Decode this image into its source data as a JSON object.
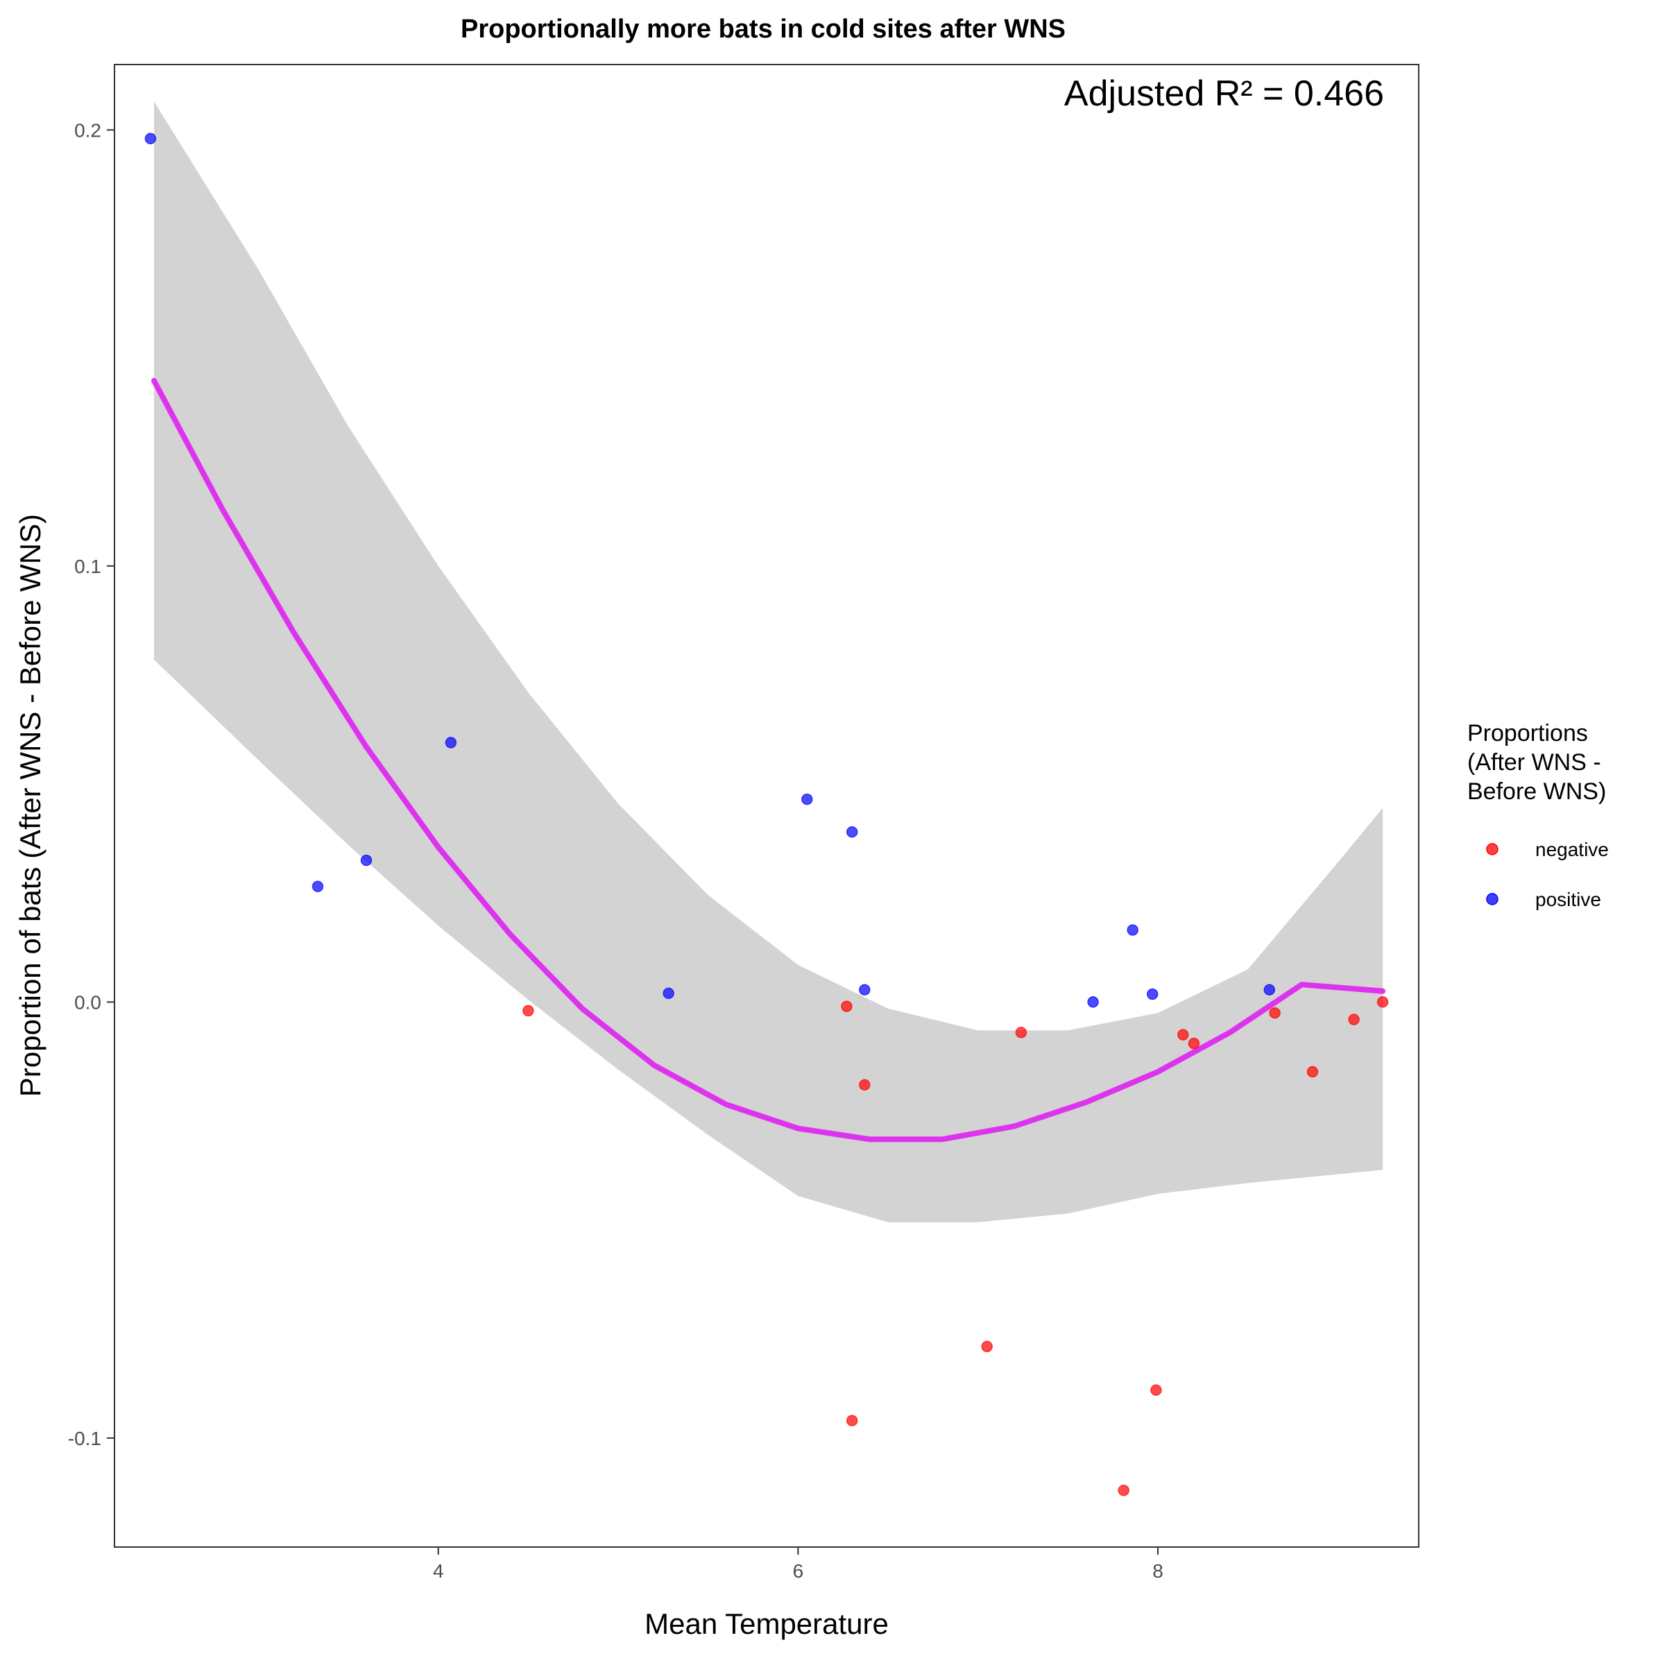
{
  "chart_data": {
    "type": "scatter",
    "title": "Proportionally more bats in cold sites after WNS",
    "xlabel": "Mean Temperature",
    "ylabel": "Proportion of bats (After WNS - Before WNS)",
    "annotation": "Adjusted R² = 0.466",
    "xlim": [
      2.2,
      9.45
    ],
    "ylim": [
      -0.125,
      0.215
    ],
    "x_ticks": [
      4,
      6,
      8
    ],
    "x_tick_labels": [
      "4",
      "6",
      "8"
    ],
    "y_ticks": [
      -0.1,
      0.0,
      0.1,
      0.2
    ],
    "y_tick_labels": [
      "-0.1",
      "0.0",
      "0.1",
      "0.2"
    ],
    "grid": false,
    "legend": {
      "title": [
        "Proportions",
        "(After WNS -",
        "Before WNS)"
      ],
      "placement": "right",
      "entries": [
        {
          "label": "negative",
          "color": "#ff0000"
        },
        {
          "label": "positive",
          "color": "#0000ff"
        }
      ]
    },
    "series": [
      {
        "name": "negative",
        "color": "#ff0000",
        "points": [
          [
            4.5,
            -0.002
          ],
          [
            6.27,
            -0.001
          ],
          [
            6.37,
            -0.019
          ],
          [
            7.24,
            -0.007
          ],
          [
            8.14,
            -0.0075
          ],
          [
            8.2,
            -0.0095
          ],
          [
            8.65,
            -0.0025
          ],
          [
            8.86,
            -0.016
          ],
          [
            9.09,
            -0.004
          ],
          [
            9.25,
            0.0
          ],
          [
            7.05,
            -0.079
          ],
          [
            6.3,
            -0.096
          ],
          [
            7.99,
            -0.089
          ],
          [
            7.81,
            -0.112
          ]
        ]
      },
      {
        "name": "positive",
        "color": "#0000ff",
        "points": [
          [
            2.4,
            0.198
          ],
          [
            3.33,
            0.0265
          ],
          [
            3.6,
            0.0325
          ],
          [
            4.07,
            0.0595
          ],
          [
            5.28,
            0.002
          ],
          [
            6.05,
            0.0465
          ],
          [
            6.3,
            0.039
          ],
          [
            6.37,
            0.0028
          ],
          [
            7.64,
            0.0
          ],
          [
            7.86,
            0.0165
          ],
          [
            7.97,
            0.0018
          ],
          [
            8.62,
            0.0028
          ]
        ]
      }
    ],
    "fit": {
      "type": "quadratic",
      "color": "#dd33ee",
      "x": [
        2.42,
        2.8,
        3.2,
        3.6,
        4.0,
        4.4,
        4.8,
        5.2,
        5.6,
        6.0,
        6.4,
        6.8,
        7.2,
        7.6,
        8.0,
        8.4,
        8.8,
        9.25
      ],
      "y": [
        0.1425,
        0.113,
        0.0845,
        0.0585,
        0.0355,
        0.0155,
        -0.0015,
        -0.0145,
        -0.0235,
        -0.029,
        -0.0315,
        -0.0315,
        -0.0285,
        -0.023,
        -0.016,
        -0.007,
        0.004,
        0.0025
      ]
    },
    "confidence_band": {
      "color": "#d3d3d3",
      "x": [
        2.42,
        3.0,
        3.5,
        4.0,
        4.5,
        5.0,
        5.5,
        6.0,
        6.5,
        7.0,
        7.5,
        8.0,
        8.5,
        9.0,
        9.25
      ],
      "upper": [
        0.2065,
        0.168,
        0.132,
        0.1,
        0.071,
        0.0455,
        0.0245,
        0.0085,
        -0.0015,
        -0.0065,
        -0.0065,
        -0.0025,
        0.0075,
        0.032,
        0.0445
      ],
      "lower": [
        0.0785,
        0.0555,
        0.036,
        0.0175,
        0.0005,
        -0.0155,
        -0.0305,
        -0.0445,
        -0.0505,
        -0.0505,
        -0.0485,
        -0.044,
        -0.0415,
        -0.0395,
        -0.0385
      ]
    }
  }
}
